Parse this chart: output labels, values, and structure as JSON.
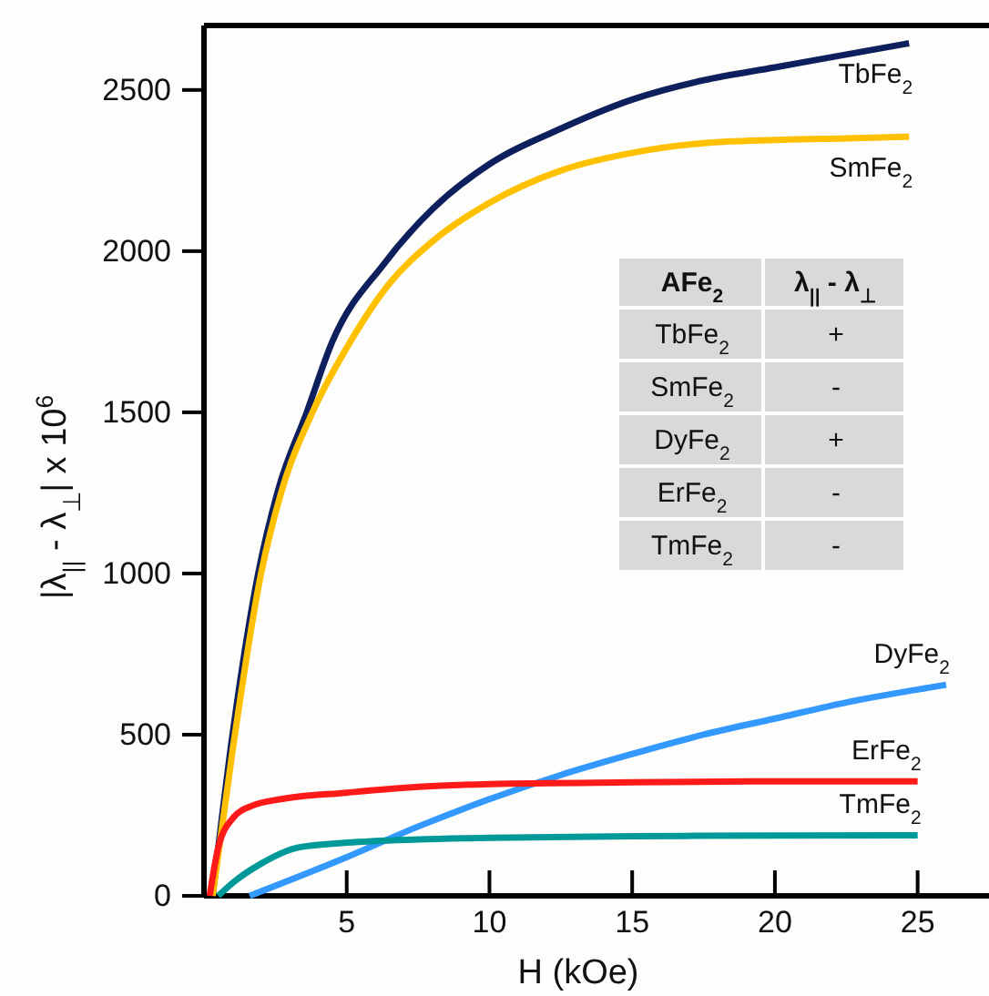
{
  "chart_data": {
    "type": "line",
    "xlabel": "H (kOe)",
    "ylabel": "|λ$_{||}$ - λ$_{⊥}$| x 10$^{6}$",
    "xlim": [
      0,
      27.5
    ],
    "ylim": [
      0,
      2700
    ],
    "xticks": [
      5,
      10,
      15,
      20,
      25
    ],
    "yticks": [
      0,
      500,
      1000,
      1500,
      2000,
      2500
    ],
    "grid": false,
    "legend": false,
    "marker": "none",
    "line_style": "solid",
    "series": [
      {
        "name": "TbFe$_{2}$",
        "color": "#0d1f5c",
        "x": [
          0.3,
          1,
          1.9,
          2.6,
          3.6,
          4.5,
          6.3,
          8,
          10,
          12.5,
          15,
          17.5,
          20,
          22.5,
          24.7
        ],
        "values": [
          0,
          500,
          1000,
          1260,
          1500,
          1720,
          1960,
          2130,
          2270,
          2380,
          2470,
          2530,
          2570,
          2610,
          2645
        ]
      },
      {
        "name": "SmFe$_{2}$",
        "color": "#ffc000",
        "x": [
          0.3,
          1,
          2,
          2.7,
          3.8,
          5,
          6.5,
          8,
          10,
          12.5,
          15,
          17.5,
          20,
          22.5,
          24.7
        ],
        "values": [
          0,
          450,
          1000,
          1250,
          1500,
          1700,
          1900,
          2030,
          2150,
          2250,
          2305,
          2335,
          2345,
          2350,
          2355
        ]
      },
      {
        "name": "DyFe$_{2}$",
        "color": "#3399ff",
        "x": [
          1.6,
          5,
          7.5,
          10,
          12.5,
          15,
          17.5,
          20,
          22.5,
          25,
          26
        ],
        "values": [
          0,
          120,
          215,
          300,
          375,
          440,
          500,
          550,
          600,
          640,
          655
        ]
      },
      {
        "name": "ErFe$_{2}$",
        "color": "#ff1a1a",
        "x": [
          0.2,
          0.5,
          1,
          1.7,
          2.7,
          5,
          7.5,
          10,
          15,
          20,
          25
        ],
        "values": [
          0,
          150,
          240,
          280,
          300,
          320,
          338,
          347,
          352,
          355,
          355
        ]
      },
      {
        "name": "TmFe$_{2}$",
        "color": "#009999",
        "x": [
          0.5,
          1,
          2,
          3.3,
          5,
          7.5,
          10,
          15,
          20,
          25
        ],
        "values": [
          0,
          40,
          100,
          150,
          165,
          175,
          180,
          185,
          187,
          188
        ]
      }
    ],
    "annotations": [
      "AFe$_{2}$",
      "λ$_{||}$ - λ$_{⊥}$",
      "TbFe$_{2}$",
      "+",
      "SmFe$_{2}$",
      "-",
      "DyFe$_{2}$",
      "+",
      "ErFe$_{2}$",
      "-",
      "TmFe$_{2}$",
      "-"
    ]
  }
}
